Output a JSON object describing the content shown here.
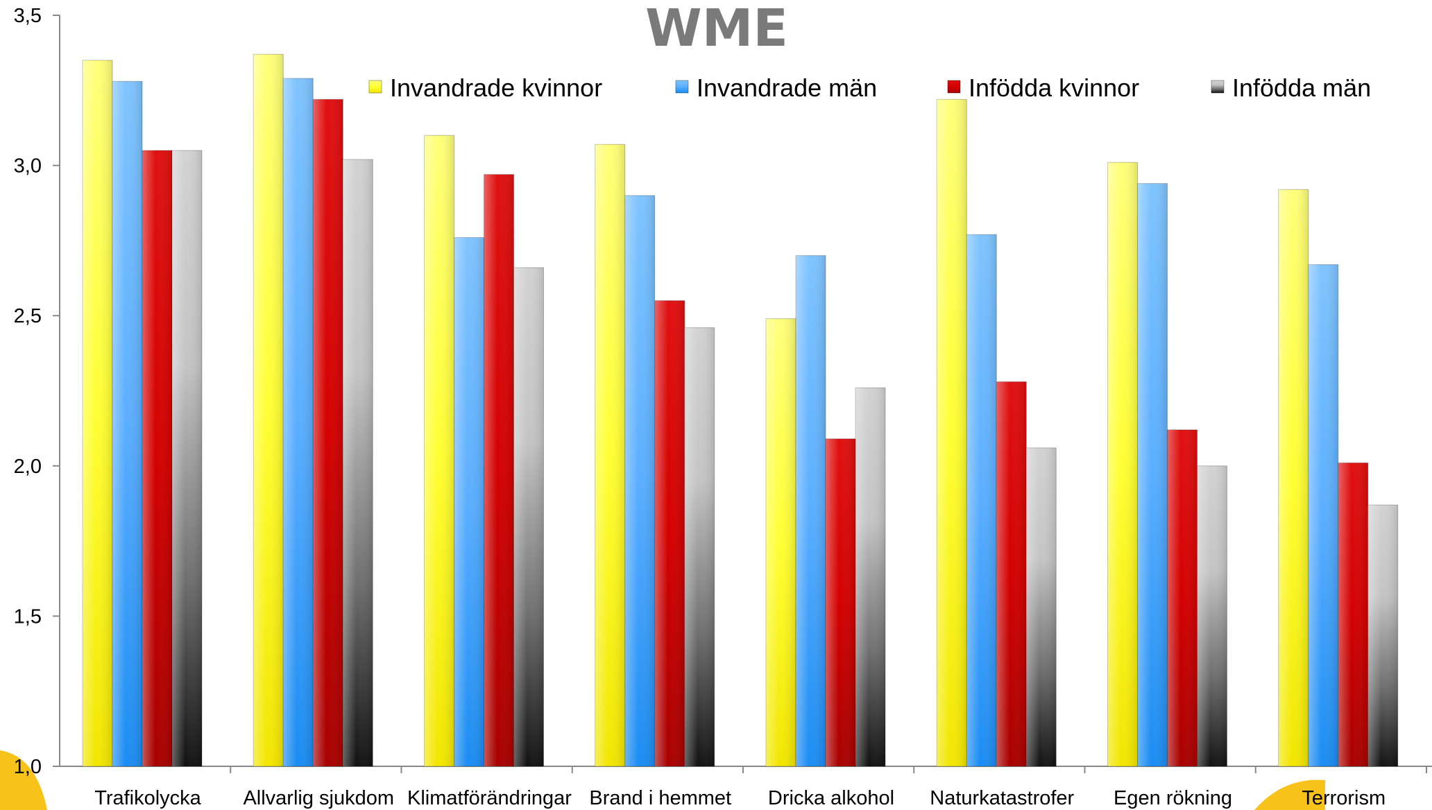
{
  "chart_data": {
    "type": "bar",
    "title": "WME",
    "xlabel": "",
    "ylabel": "",
    "ylim": [
      1.0,
      3.5
    ],
    "yticks": [
      "1,0",
      "1,5",
      "2,0",
      "2,5",
      "3,0",
      "3,5"
    ],
    "ytick_values": [
      1.0,
      1.5,
      2.0,
      2.5,
      3.0,
      3.5
    ],
    "grid": false,
    "legend_position": "top-right",
    "categories": [
      "Trafikolycka",
      "Allvarlig sjukdom",
      "Klimatförändringar",
      "Brand i hemmet",
      "Dricka alkohol",
      "Naturkatastrofer",
      "Egen rökning",
      "Terrorism"
    ],
    "series": [
      {
        "name": "Invandrade kvinnor",
        "color": "#ffff00",
        "values": [
          3.35,
          3.37,
          3.1,
          3.07,
          2.49,
          3.22,
          3.01,
          2.92
        ]
      },
      {
        "name": "Invandrade män",
        "color": "#3399ff",
        "values": [
          3.28,
          3.29,
          2.76,
          2.9,
          2.7,
          2.77,
          2.94,
          2.67
        ]
      },
      {
        "name": "Infödda kvinnor",
        "color": "#dd0000",
        "values": [
          3.05,
          3.22,
          2.97,
          2.55,
          2.09,
          2.28,
          2.12,
          2.01
        ]
      },
      {
        "name": "Infödda män",
        "color": "#999999",
        "values": [
          3.05,
          3.02,
          2.66,
          2.46,
          2.26,
          2.06,
          2.0,
          1.87
        ]
      }
    ]
  }
}
